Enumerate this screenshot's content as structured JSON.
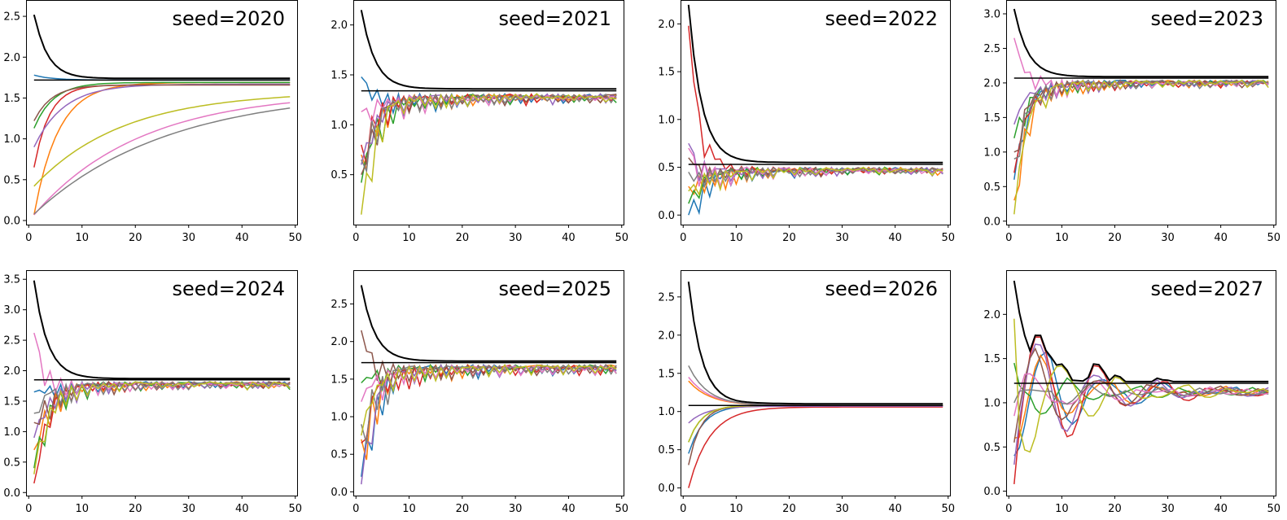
{
  "figure": {
    "series_colors": [
      "#1f77b4",
      "#ff7f0e",
      "#2ca02c",
      "#d62728",
      "#9467bd",
      "#8c564b",
      "#e377c2",
      "#7f7f7f",
      "#bcbd22"
    ],
    "envelope_color": "#000000",
    "reference_color": "#000000"
  },
  "chart_data": [
    {
      "type": "line",
      "title": "seed=2020",
      "xlim": [
        -0.5,
        50.5
      ],
      "ylim": [
        -0.05,
        2.7
      ],
      "xticks": [
        0,
        10,
        20,
        30,
        40,
        50
      ],
      "yticks": [
        0.0,
        0.5,
        1.0,
        1.5,
        2.0,
        2.5
      ],
      "reference": 1.72,
      "start": 2.52,
      "x_range": [
        1,
        49
      ],
      "behavior": "smooth",
      "starts": [
        1.78,
        0.07,
        1.13,
        0.65,
        0.9,
        1.22,
        0.07,
        0.08,
        0.42
      ],
      "rates": [
        0.3,
        0.22,
        0.28,
        0.35,
        0.18,
        0.3,
        0.05,
        0.04,
        0.06
      ],
      "asymptotes": [
        1.72,
        1.69,
        1.69,
        1.66,
        1.67,
        1.66,
        1.58,
        1.6,
        1.58
      ]
    },
    {
      "type": "line",
      "title": "seed=2021",
      "xlim": [
        -0.5,
        50.5
      ],
      "ylim": [
        0.0,
        2.25
      ],
      "xticks": [
        0,
        10,
        20,
        30,
        40,
        50
      ],
      "yticks": [
        0.5,
        1.0,
        1.5,
        2.0
      ],
      "reference": 1.34,
      "start": 2.15,
      "x_range": [
        1,
        49
      ],
      "behavior": "oscillating",
      "starts": [
        1.48,
        0.7,
        0.42,
        0.8,
        0.6,
        0.5,
        1.13,
        0.65,
        0.1
      ],
      "amplitude": 0.45
    },
    {
      "type": "line",
      "title": "seed=2022",
      "xlim": [
        -0.5,
        50.5
      ],
      "ylim": [
        -0.1,
        2.25
      ],
      "xticks": [
        0,
        10,
        20,
        30,
        40,
        50
      ],
      "yticks": [
        0.0,
        0.5,
        1.0,
        1.5,
        2.0
      ],
      "reference": 0.53,
      "start": 2.2,
      "x_range": [
        1,
        49
      ],
      "behavior": "oscillating",
      "starts": [
        0.0,
        0.3,
        0.12,
        1.98,
        0.75,
        0.6,
        0.7,
        0.45,
        0.25
      ],
      "amplitude": 0.35
    },
    {
      "type": "line",
      "title": "seed=2023",
      "xlim": [
        -0.5,
        50.5
      ],
      "ylim": [
        -0.05,
        3.2
      ],
      "xticks": [
        0,
        10,
        20,
        30,
        40,
        50
      ],
      "yticks": [
        0.0,
        0.5,
        1.0,
        1.5,
        2.0,
        2.5,
        3.0
      ],
      "reference": 2.07,
      "start": 3.07,
      "x_range": [
        1,
        49
      ],
      "behavior": "oscillating",
      "starts": [
        0.6,
        0.3,
        1.2,
        0.7,
        1.4,
        1.0,
        2.65,
        0.9,
        0.1
      ],
      "amplitude": 0.5
    },
    {
      "type": "line",
      "title": "seed=2024",
      "xlim": [
        -0.5,
        50.5
      ],
      "ylim": [
        -0.05,
        3.65
      ],
      "xticks": [
        0,
        10,
        20,
        30,
        40,
        50
      ],
      "yticks": [
        0.0,
        0.5,
        1.0,
        1.5,
        2.0,
        2.5,
        3.0,
        3.5
      ],
      "reference": 1.85,
      "start": 3.48,
      "x_range": [
        1,
        49
      ],
      "behavior": "oscillating",
      "starts": [
        1.65,
        0.7,
        0.4,
        0.15,
        0.9,
        1.15,
        2.62,
        1.3,
        0.3
      ],
      "amplitude": 0.6
    },
    {
      "type": "line",
      "title": "seed=2025",
      "xlim": [
        -0.5,
        50.5
      ],
      "ylim": [
        -0.05,
        2.95
      ],
      "xticks": [
        0,
        10,
        20,
        30,
        40,
        50
      ],
      "yticks": [
        0.0,
        0.5,
        1.0,
        1.5,
        2.0,
        2.5
      ],
      "reference": 1.72,
      "start": 2.75,
      "x_range": [
        1,
        49
      ],
      "behavior": "oscillating",
      "starts": [
        0.2,
        0.7,
        1.45,
        0.65,
        0.1,
        2.15,
        1.2,
        0.9,
        0.75
      ],
      "amplitude": 0.7
    },
    {
      "type": "line",
      "title": "seed=2026",
      "xlim": [
        -0.5,
        50.5
      ],
      "ylim": [
        -0.1,
        2.85
      ],
      "xticks": [
        0,
        10,
        20,
        30,
        40,
        50
      ],
      "yticks": [
        0.0,
        0.5,
        1.0,
        1.5,
        2.0,
        2.5
      ],
      "reference": 1.08,
      "start": 2.7,
      "x_range": [
        1,
        49
      ],
      "behavior": "smooth",
      "starts": [
        0.45,
        1.4,
        0.6,
        0.0,
        0.85,
        0.3,
        1.45,
        1.6,
        0.6
      ],
      "rates": [
        0.35,
        0.25,
        0.4,
        0.25,
        0.3,
        0.45,
        0.25,
        0.28,
        0.4
      ],
      "asymptotes": [
        1.08,
        1.08,
        1.08,
        1.06,
        1.07,
        1.08,
        1.08,
        1.08,
        1.08
      ]
    },
    {
      "type": "line",
      "title": "seed=2027",
      "xlim": [
        -0.5,
        50.5
      ],
      "ylim": [
        -0.05,
        2.5
      ],
      "xticks": [
        0,
        10,
        20,
        30,
        40,
        50
      ],
      "yticks": [
        0.0,
        0.5,
        1.0,
        1.5,
        2.0
      ],
      "reference": 1.22,
      "start": 2.38,
      "x_range": [
        1,
        49
      ],
      "behavior": "wavy",
      "starts": [
        0.4,
        0.6,
        1.45,
        0.08,
        0.3,
        0.55,
        0.85,
        1.0,
        1.95
      ]
    }
  ]
}
